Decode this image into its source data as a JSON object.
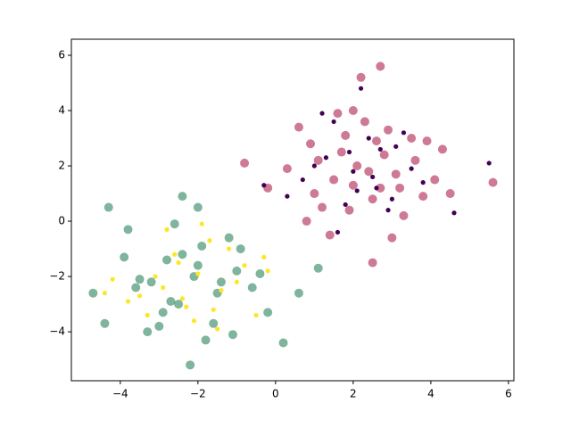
{
  "chart_data": {
    "type": "scatter",
    "xlim": [
      -5.26,
      6.14
    ],
    "ylim": [
      -5.77,
      6.58
    ],
    "xticks": [
      {
        "value": -4,
        "label": "−4"
      },
      {
        "value": -2,
        "label": "−2"
      },
      0,
      2,
      4,
      6
    ],
    "yticks": [
      {
        "value": -4,
        "label": "−4"
      },
      {
        "value": -2,
        "label": "−2"
      },
      0,
      2,
      4,
      6
    ],
    "grid": false,
    "series": [
      {
        "color": "#a50d3c",
        "opacity": 0.55,
        "marker": "large",
        "x": [
          2.1,
          1.5,
          2.8,
          3.2,
          0.9,
          1.8,
          2.5,
          3.6,
          4.1,
          1.2,
          0.3,
          2.0,
          2.9,
          3.3,
          1.0,
          1.7,
          2.4,
          0.6,
          3.9,
          4.5,
          2.2,
          1.4,
          2.7,
          3.0,
          -0.2,
          5.6,
          2.5,
          1.6,
          3.5,
          0.8,
          2.0,
          4.3,
          1.1,
          3.1,
          2.6,
          -0.8,
          1.9,
          3.8,
          2.3,
          2.7
        ],
        "y": [
          2.0,
          1.5,
          2.4,
          1.2,
          2.8,
          3.1,
          0.8,
          2.2,
          1.5,
          0.5,
          1.9,
          4.0,
          3.3,
          0.2,
          1.0,
          2.5,
          1.8,
          3.4,
          2.9,
          1.0,
          5.2,
          -0.5,
          5.6,
          -0.6,
          1.2,
          1.4,
          -1.5,
          3.9,
          3.0,
          0.0,
          1.3,
          2.6,
          2.2,
          1.7,
          2.9,
          2.1,
          0.4,
          0.9,
          3.6,
          1.2
        ]
      },
      {
        "color": "#440154",
        "opacity": 1,
        "marker": "small",
        "x": [
          2.0,
          1.3,
          2.6,
          3.1,
          1.8,
          2.4,
          0.7,
          3.5,
          1.5,
          2.9,
          2.2,
          1.0,
          3.8,
          5.5,
          1.6,
          2.7,
          0.3,
          3.3,
          2.1,
          4.6,
          1.9,
          2.5,
          1.2,
          3.0,
          -0.3
        ],
        "y": [
          1.8,
          2.3,
          1.2,
          2.7,
          0.6,
          3.0,
          1.5,
          1.9,
          3.6,
          0.4,
          4.8,
          2.0,
          1.4,
          2.1,
          -0.4,
          2.6,
          0.9,
          3.2,
          1.1,
          0.3,
          2.5,
          1.6,
          3.9,
          0.8,
          1.3
        ]
      },
      {
        "color": "#00693c",
        "opacity": 0.5,
        "marker": "large",
        "x": [
          -2.1,
          -2.8,
          -1.5,
          -3.2,
          -1.0,
          -2.5,
          -3.8,
          -0.6,
          -2.0,
          -4.3,
          -1.8,
          -3.0,
          -2.4,
          -0.2,
          -4.7,
          -1.2,
          -2.7,
          -3.5,
          0.6,
          -2.2,
          -1.6,
          -3.9,
          -0.9,
          -2.9,
          1.1,
          -2.4,
          0.2,
          -1.4,
          -3.3,
          -2.0,
          -4.4,
          -1.1,
          -2.6,
          -0.4,
          -3.6,
          -1.9
        ],
        "y": [
          -2.0,
          -1.4,
          -2.6,
          -2.2,
          -1.8,
          -3.0,
          -0.3,
          -2.4,
          0.5,
          0.5,
          -4.3,
          -3.8,
          -1.2,
          -3.3,
          -2.6,
          -0.6,
          -2.9,
          -2.1,
          -2.6,
          -5.2,
          -3.7,
          -1.3,
          -1.0,
          -3.3,
          -1.7,
          0.9,
          -4.4,
          -2.2,
          -4.0,
          -1.6,
          -3.7,
          -4.1,
          -0.1,
          -1.9,
          -2.4,
          -0.9
        ]
      },
      {
        "color": "#fde725",
        "opacity": 1,
        "marker": "small",
        "x": [
          -2.0,
          -2.6,
          -1.4,
          -3.1,
          -1.7,
          -2.3,
          -0.8,
          -3.5,
          -1.0,
          -2.8,
          -2.1,
          -4.2,
          -0.3,
          -1.5,
          -2.5,
          -3.8,
          -1.2,
          -0.5,
          -2.9,
          -1.9,
          -4.4,
          -0.2,
          -2.4,
          -3.3,
          -1.6
        ],
        "y": [
          -1.9,
          -1.2,
          -2.5,
          -2.0,
          -0.7,
          -3.1,
          -1.6,
          -2.7,
          -2.2,
          -0.3,
          -3.6,
          -2.1,
          -1.3,
          -3.9,
          -1.5,
          -2.9,
          -1.0,
          -3.4,
          -2.4,
          -0.1,
          -2.6,
          -1.8,
          -2.8,
          -3.4,
          -3.2
        ]
      }
    ]
  }
}
